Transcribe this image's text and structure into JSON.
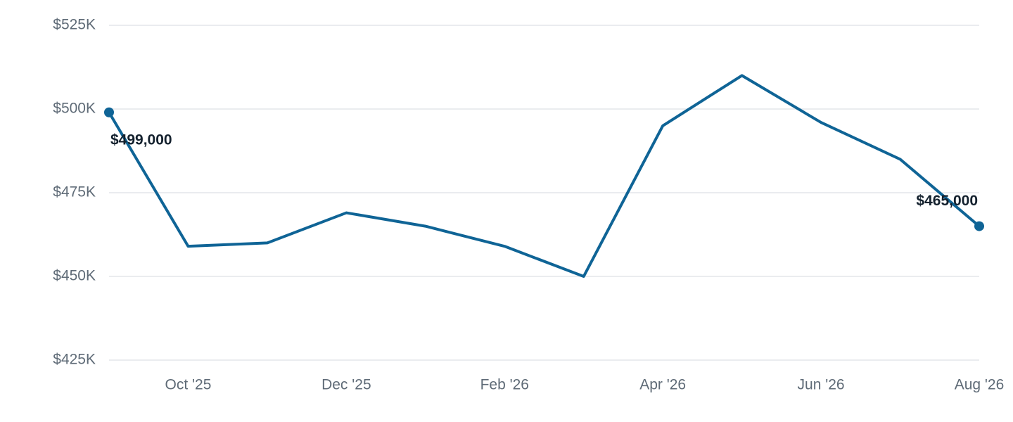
{
  "chart_data": {
    "type": "line",
    "categories": [
      null,
      "Oct '25",
      null,
      "Dec '25",
      null,
      "Feb '26",
      null,
      "Apr '26",
      null,
      "Jun '26",
      null,
      "Aug '26"
    ],
    "series": [
      {
        "color": "#0f6496",
        "values": [
          499000,
          459000,
          460000,
          469000,
          465000,
          459000,
          450000,
          495000,
          510000,
          496000,
          485000,
          465000
        ],
        "value_labels": [
          "$499,000",
          null,
          null,
          null,
          null,
          null,
          null,
          null,
          null,
          null,
          null,
          "$465,000"
        ]
      }
    ],
    "ylim": [
      425000,
      525000
    ],
    "yticks": [
      {
        "value": 425000,
        "label": "$425K"
      },
      {
        "value": 450000,
        "label": "$450K"
      },
      {
        "value": 475000,
        "label": "$475K"
      },
      {
        "value": 500000,
        "label": "$500K"
      },
      {
        "value": 525000,
        "label": "$525K"
      }
    ],
    "grid": true
  }
}
